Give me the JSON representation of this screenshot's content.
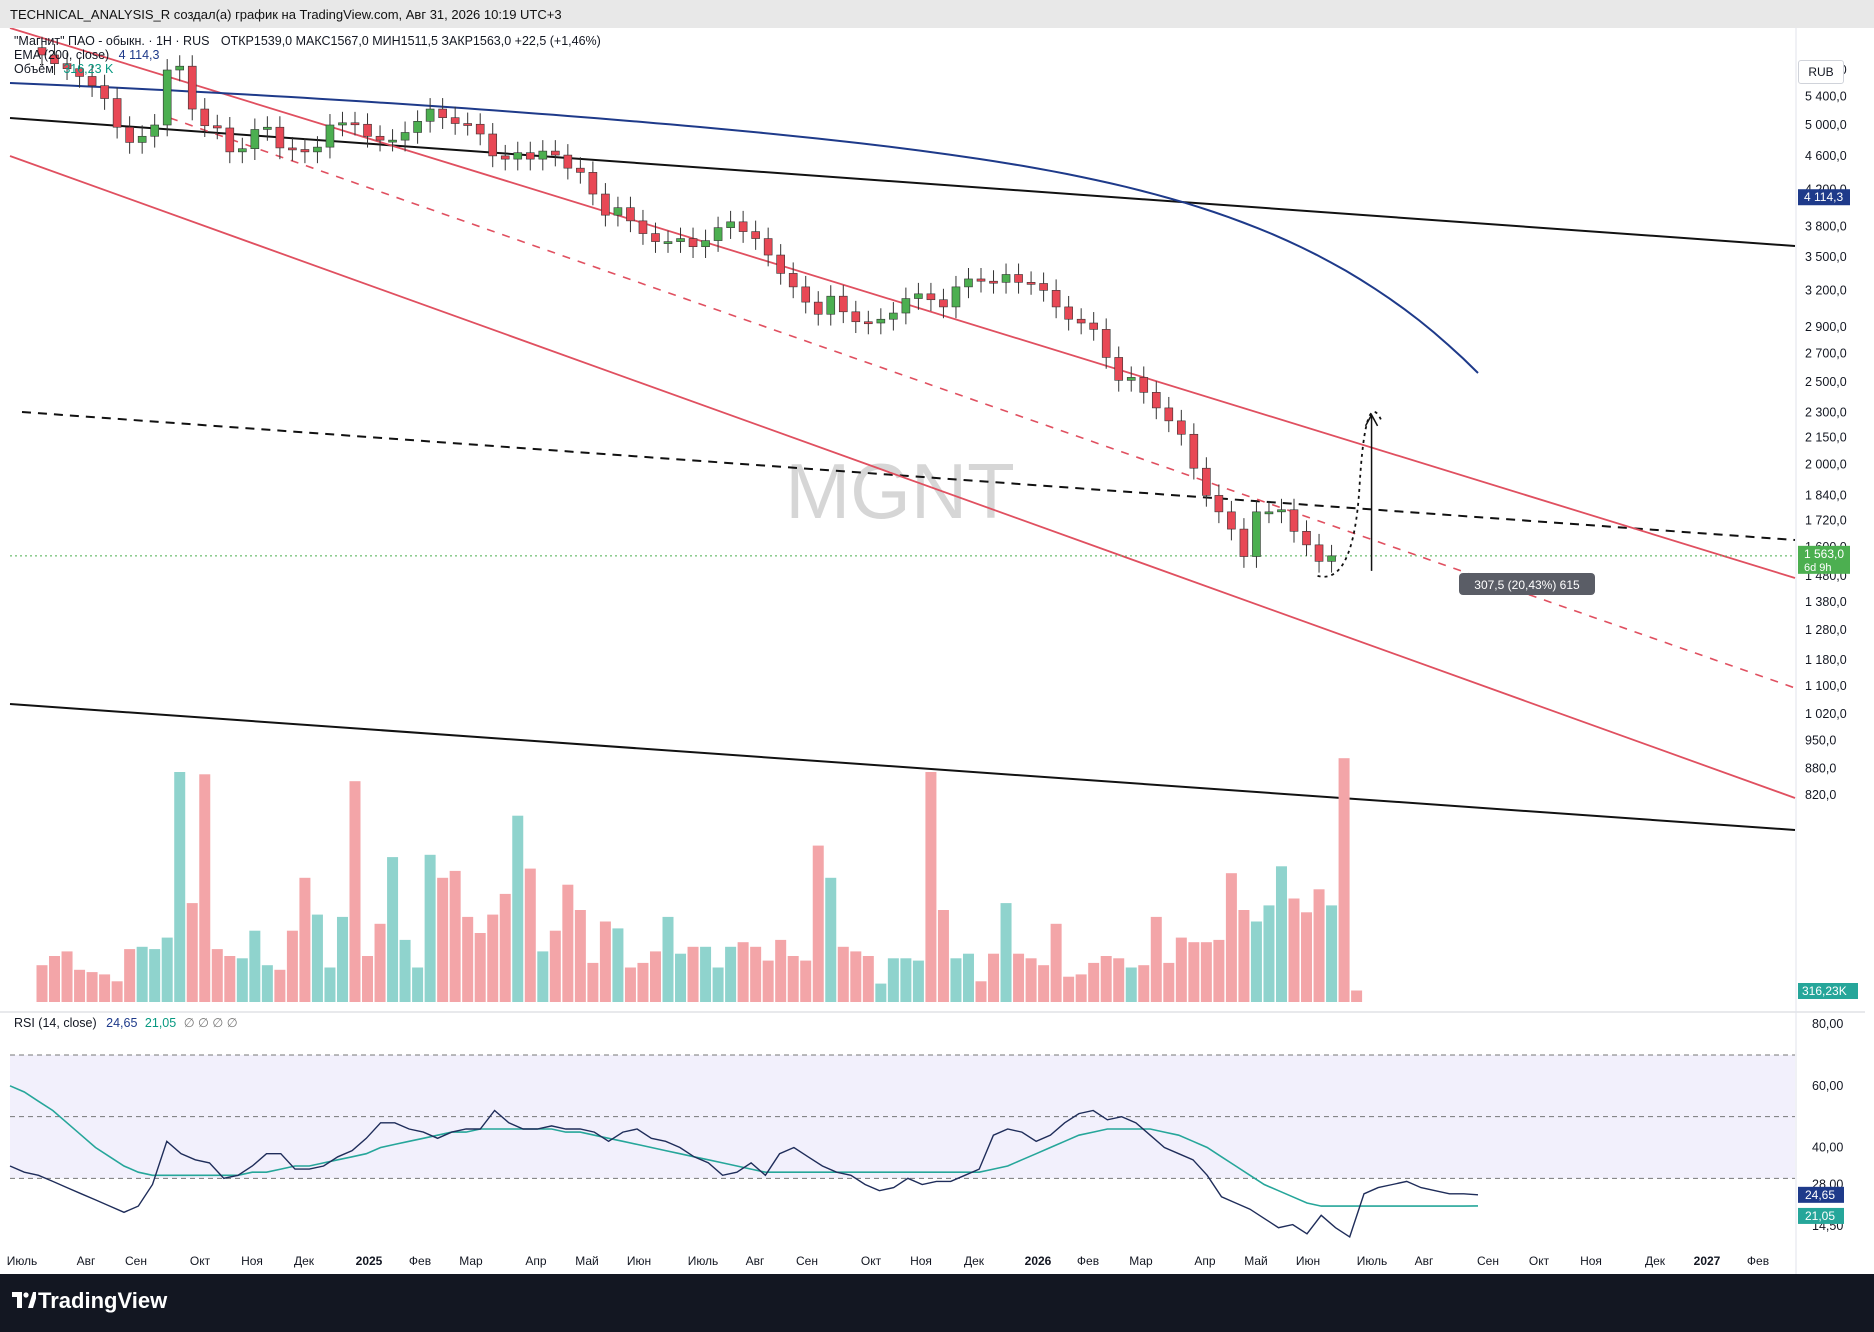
{
  "attribution": "TECHNICAL_ANALYSIS_R создал(а) график на TradingView.com, Авг 31, 2026 10:19 UTC+3",
  "watermark": "MGNT",
  "currency": "RUB",
  "brand": "TradingView",
  "legend": {
    "symbol": "\"Магнит\" ПАО - обыкн. · 1Н · RUS",
    "ohlc": "ОТКР1539,0  МАКС1567,0  МИН1511,5  ЗАКР1563,0  +22,5 (+1,46%)",
    "ema_label": "EMA (200, close)",
    "ema_value": "4 114,3",
    "volume_label": "Объём",
    "volume_value": "316,23 K",
    "rsi_label": "RSI (14, close)",
    "rsi_value": "24,65",
    "rsi_ma_value": "21,05"
  },
  "colors": {
    "up": "#4caf50",
    "down": "#e84855",
    "vol_up": "#8fd3cd",
    "vol_down": "#f3a5a8",
    "ema": "#1e3a8a",
    "channel": "#e05060",
    "rsi": "#1f2d5a",
    "rsi_ma": "#26a69a"
  },
  "chart_data": [
    {
      "type": "candlestick",
      "title": "\"Магнит\" ПАО - обыкн. · 1Н · RUS",
      "ylabel": "RUB",
      "y_scale": "log",
      "y_ticks": [
        5800,
        5400,
        5000,
        4600,
        4200,
        3800,
        3500,
        3200,
        2900,
        2700,
        2500,
        2300,
        2150,
        2000,
        1840,
        1720,
        1600,
        1480,
        1380,
        1280,
        1180,
        1100,
        1020,
        950,
        880,
        820
      ],
      "y_tick_labels": [
        "5 800,0",
        "5 400,0",
        "5 000,0",
        "4 600,0",
        "4 200,0",
        "3 800,0",
        "3 500,0",
        "3 200,0",
        "2 900,0",
        "2 700,0",
        "2 500,0",
        "2 300,0",
        "2 150,0",
        "2 000,0",
        "1 840,0",
        "1 720,0",
        "1 600,0",
        "1 480,0",
        "1 380,0",
        "1 280,0",
        "1 180,0",
        "1 100,0",
        "1 020,0",
        "950,0",
        "880,0",
        "820,0"
      ],
      "x_tick_labels": [
        "Июль",
        "Авг",
        "Сен",
        "Окт",
        "Ноя",
        "Дек",
        "2025",
        "Фев",
        "Мар",
        "Апр",
        "Май",
        "Июн",
        "Июль",
        "Авг",
        "Сен",
        "Окт",
        "Ноя",
        "Дек",
        "2026",
        "Фев",
        "Мар",
        "Апр",
        "Май",
        "Июн",
        "Июль",
        "Авг",
        "Сен",
        "Окт",
        "Ноя",
        "Дек",
        "2027",
        "Фев"
      ],
      "candles_close": [
        6040,
        5900,
        5820,
        5700,
        5560,
        5370,
        4970,
        4770,
        4850,
        5000,
        5800,
        5860,
        5220,
        4990,
        4960,
        4650,
        4690,
        4940,
        4970,
        4700,
        4680,
        4650,
        4710,
        5000,
        5030,
        5010,
        4850,
        4800,
        4800,
        4900,
        5050,
        5220,
        5100,
        5020,
        5010,
        4880,
        4600,
        4560,
        4640,
        4560,
        4660,
        4610,
        4450,
        4400,
        4150,
        3920,
        4000,
        3860,
        3730,
        3650,
        3650,
        3680,
        3600,
        3660,
        3790,
        3850,
        3750,
        3680,
        3520,
        3350,
        3230,
        3100,
        3000,
        3150,
        3020,
        2940,
        2930,
        2960,
        3010,
        3130,
        3170,
        3120,
        3060,
        3230,
        3300,
        3280,
        3270,
        3340,
        3270,
        3260,
        3200,
        3060,
        2960,
        2930,
        2880,
        2670,
        2510,
        2530,
        2430,
        2330,
        2250,
        2170,
        1980,
        1840,
        1760,
        1680,
        1560,
        1760,
        1760,
        1770,
        1670,
        1610,
        1540,
        1563
      ],
      "annotation": "307,5 (20,43%) 615",
      "ema200_last": 4114.3,
      "last_price": 1563.0,
      "last_price_label": "1 563,0",
      "countdown": "6d 9h",
      "price_tags": [
        "4 114,3",
        "1 563,0"
      ]
    },
    {
      "type": "bar",
      "title": "Объём",
      "last_value_label": "316,23K",
      "volume_heights": [
        0.16,
        0.2,
        0.22,
        0.14,
        0.13,
        0.12,
        0.09,
        0.23,
        0.24,
        0.23,
        0.28,
        1.0,
        0.43,
        0.99,
        0.23,
        0.2,
        0.19,
        0.31,
        0.16,
        0.14,
        0.31,
        0.54,
        0.38,
        0.15,
        0.37,
        0.96,
        0.2,
        0.34,
        0.63,
        0.27,
        0.15,
        0.64,
        0.54,
        0.57,
        0.37,
        0.3,
        0.38,
        0.47,
        0.81,
        0.58,
        0.22,
        0.31,
        0.51,
        0.4,
        0.17,
        0.35,
        0.32,
        0.15,
        0.17,
        0.22,
        0.37,
        0.21,
        0.24,
        0.24,
        0.15,
        0.24,
        0.26,
        0.24,
        0.18,
        0.27,
        0.2,
        0.18,
        0.68,
        0.54,
        0.24,
        0.22,
        0.2,
        0.08,
        0.19,
        0.19,
        0.18,
        1.0,
        0.4,
        0.19,
        0.21,
        0.09,
        0.21,
        0.43,
        0.21,
        0.19,
        0.16,
        0.34,
        0.11,
        0.12,
        0.17,
        0.2,
        0.19,
        0.15,
        0.16,
        0.37,
        0.17,
        0.28,
        0.26,
        0.26,
        0.27,
        0.56,
        0.4,
        0.35,
        0.42,
        0.59,
        0.45,
        0.39,
        0.49,
        0.42,
        1.06,
        0.05
      ]
    },
    {
      "type": "line",
      "title": "RSI (14, close)",
      "y_ticks": [
        80,
        60,
        40,
        28,
        14.5
      ],
      "y_tick_labels": [
        "80,00",
        "60,00",
        "40,00",
        "28,00",
        "14,50"
      ],
      "bands": [
        70,
        50,
        30
      ],
      "series": [
        {
          "name": "RSI",
          "last": 24.65,
          "last_label": "24,65",
          "values": [
            34,
            32,
            31,
            29,
            27,
            25,
            23,
            21,
            19,
            21,
            28,
            42,
            38,
            36,
            35,
            30,
            31,
            34,
            38,
            38,
            33,
            33,
            34,
            37,
            39,
            43,
            48,
            48,
            46,
            45,
            43,
            45,
            46,
            46,
            52,
            48,
            46,
            46,
            47,
            46,
            46,
            45,
            42,
            45,
            46,
            43,
            42,
            40,
            37,
            35,
            31,
            32,
            35,
            31,
            38,
            40,
            37,
            34,
            32,
            31,
            28,
            26,
            27,
            30,
            28,
            29,
            29,
            31,
            33,
            44,
            46,
            45,
            42,
            44,
            48,
            51,
            52,
            49,
            50,
            48,
            44,
            40,
            38,
            36,
            31,
            24,
            22,
            20,
            17,
            14,
            15,
            12,
            18,
            14,
            11,
            25,
            27,
            28,
            29,
            27,
            26,
            25,
            25,
            24.65
          ]
        },
        {
          "name": "RSI MA",
          "last": 21.05,
          "last_label": "21,05",
          "values": [
            60,
            58,
            55,
            52,
            48,
            44,
            40,
            37,
            34,
            32,
            31,
            31,
            31,
            31,
            31,
            31,
            31,
            32,
            32,
            33,
            34,
            34,
            35,
            36,
            37,
            38,
            40,
            41,
            42,
            43,
            44,
            45,
            45,
            46,
            46,
            46,
            46,
            46,
            46,
            45,
            45,
            44,
            43,
            42,
            41,
            40,
            39,
            38,
            37,
            36,
            35,
            34,
            33,
            32,
            32,
            32,
            32,
            32,
            32,
            32,
            32,
            32,
            32,
            32,
            32,
            32,
            32,
            32,
            32,
            33,
            34,
            36,
            38,
            40,
            42,
            44,
            45,
            46,
            46,
            46,
            46,
            45,
            44,
            42,
            40,
            37,
            34,
            31,
            28,
            26,
            24,
            22,
            21,
            21,
            21,
            21,
            21,
            21,
            21,
            21,
            21,
            21,
            21,
            21.05
          ]
        }
      ]
    }
  ]
}
